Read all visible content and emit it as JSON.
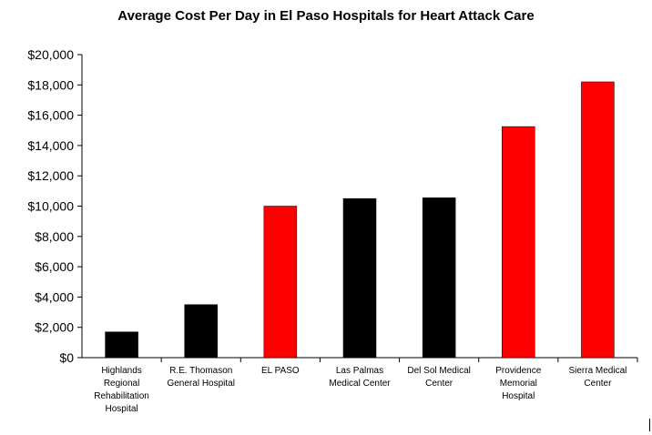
{
  "chart_data": {
    "type": "bar",
    "title": "Average Cost Per Day in El Paso Hospitals for Heart Attack Care",
    "xlabel": "",
    "ylabel": "",
    "ylim": [
      0,
      20000
    ],
    "y_ticks": [
      0,
      2000,
      4000,
      6000,
      8000,
      10000,
      12000,
      14000,
      16000,
      18000,
      20000
    ],
    "y_tick_labels": [
      "$0",
      "$2,000",
      "$4,000",
      "$6,000",
      "$8,000",
      "$10,000",
      "$12,000",
      "$14,000",
      "$16,000",
      "$18,000",
      "$20,000"
    ],
    "grid": false,
    "legend": "none",
    "categories": [
      [
        "Highlands",
        "Regional",
        "Rehabilitation",
        "Hospital"
      ],
      [
        "R.E. Thomason",
        "General Hospital"
      ],
      [
        "EL PASO"
      ],
      [
        "Las Palmas",
        "Medical Center"
      ],
      [
        "Del Sol Medical",
        "Center"
      ],
      [
        "Providence",
        "Memorial",
        "Hospital"
      ],
      [
        "Sierra Medical",
        "Center"
      ]
    ],
    "values": [
      1700,
      3500,
      10000,
      10500,
      10550,
      15250,
      18200
    ],
    "bar_colors": [
      "#000000",
      "#000000",
      "#ff0000",
      "#000000",
      "#000000",
      "#ff0000",
      "#ff0000"
    ]
  }
}
